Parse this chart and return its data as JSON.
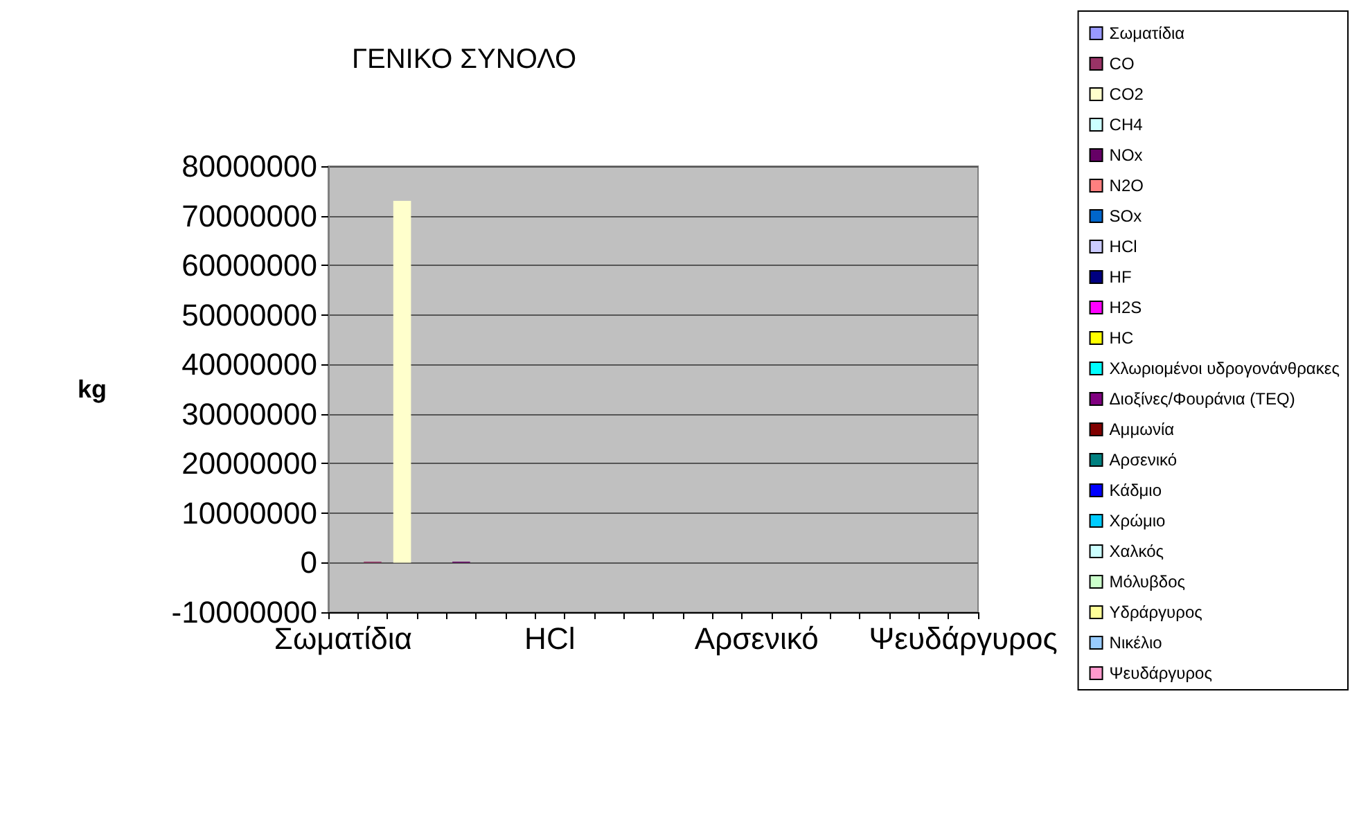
{
  "chart_data": {
    "type": "bar",
    "title": "ΓΕΝΙΚΟ ΣΥΝΟΛΟ",
    "ylabel": "kg",
    "categories": [
      "Σωματίδια",
      null,
      null,
      null,
      null,
      null,
      null,
      "HCl",
      null,
      null,
      null,
      null,
      null,
      null,
      "Αρσενικό",
      null,
      null,
      null,
      null,
      null,
      null,
      "Ψευδάργυρος"
    ],
    "stacked": true,
    "series": [
      {
        "name": "Σωματίδια",
        "color": "#9999ff",
        "values": [
          0,
          null,
          null,
          null,
          null,
          null,
          null,
          null,
          null,
          null,
          null,
          null,
          null,
          null,
          null,
          null,
          null,
          null,
          null,
          null,
          null,
          null
        ]
      },
      {
        "name": "CO",
        "color": "#993366",
        "values": [
          null,
          200000,
          null,
          null,
          null,
          null,
          null,
          null,
          null,
          null,
          null,
          null,
          null,
          null,
          null,
          null,
          null,
          null,
          null,
          null,
          null,
          null
        ]
      },
      {
        "name": "CO2",
        "color": "#ffffcc",
        "values": [
          null,
          null,
          73000000,
          null,
          null,
          null,
          null,
          null,
          null,
          null,
          null,
          null,
          null,
          null,
          null,
          null,
          null,
          null,
          null,
          null,
          null,
          null
        ]
      },
      {
        "name": "CH4",
        "color": "#ccffff",
        "values": [
          null,
          null,
          null,
          0,
          null,
          null,
          null,
          null,
          null,
          null,
          null,
          null,
          null,
          null,
          null,
          null,
          null,
          null,
          null,
          null,
          null,
          null
        ]
      },
      {
        "name": "NOx",
        "color": "#660066",
        "values": [
          null,
          null,
          null,
          null,
          200000,
          null,
          null,
          null,
          null,
          null,
          null,
          null,
          null,
          null,
          null,
          null,
          null,
          null,
          null,
          null,
          null,
          null
        ]
      },
      {
        "name": "N2O",
        "color": "#ff8080",
        "values": [
          null,
          null,
          null,
          null,
          null,
          0,
          null,
          null,
          null,
          null,
          null,
          null,
          null,
          null,
          null,
          null,
          null,
          null,
          null,
          null,
          null,
          null
        ]
      },
      {
        "name": "SOx",
        "color": "#0066cc",
        "values": [
          null,
          null,
          null,
          null,
          null,
          null,
          0,
          null,
          null,
          null,
          null,
          null,
          null,
          null,
          null,
          null,
          null,
          null,
          null,
          null,
          null,
          null
        ]
      },
      {
        "name": "HCl",
        "color": "#ccccff",
        "values": [
          null,
          null,
          null,
          null,
          null,
          null,
          null,
          0,
          null,
          null,
          null,
          null,
          null,
          null,
          null,
          null,
          null,
          null,
          null,
          null,
          null,
          null
        ]
      },
      {
        "name": "HF",
        "color": "#000080",
        "values": [
          null,
          null,
          null,
          null,
          null,
          null,
          null,
          null,
          0,
          null,
          null,
          null,
          null,
          null,
          null,
          null,
          null,
          null,
          null,
          null,
          null,
          null
        ]
      },
      {
        "name": "H2S",
        "color": "#ff00ff",
        "values": [
          null,
          null,
          null,
          null,
          null,
          null,
          null,
          null,
          null,
          0,
          null,
          null,
          null,
          null,
          null,
          null,
          null,
          null,
          null,
          null,
          null,
          null
        ]
      },
      {
        "name": "HC",
        "color": "#ffff00",
        "values": [
          null,
          null,
          null,
          null,
          null,
          null,
          null,
          null,
          null,
          null,
          0,
          null,
          null,
          null,
          null,
          null,
          null,
          null,
          null,
          null,
          null,
          null
        ]
      },
      {
        "name": "Χλωριομένοι υδρογονάνθρακες",
        "color": "#00ffff",
        "values": [
          null,
          null,
          null,
          null,
          null,
          null,
          null,
          null,
          null,
          null,
          null,
          0,
          null,
          null,
          null,
          null,
          null,
          null,
          null,
          null,
          null,
          null
        ]
      },
      {
        "name": "Διοξίνες/Φουράνια (TEQ)",
        "color": "#800080",
        "values": [
          null,
          null,
          null,
          null,
          null,
          null,
          null,
          null,
          null,
          null,
          null,
          null,
          0,
          null,
          null,
          null,
          null,
          null,
          null,
          null,
          null,
          null
        ]
      },
      {
        "name": "Αμμωνία",
        "color": "#800000",
        "values": [
          null,
          null,
          null,
          null,
          null,
          null,
          null,
          null,
          null,
          null,
          null,
          null,
          null,
          0,
          null,
          null,
          null,
          null,
          null,
          null,
          null,
          null
        ]
      },
      {
        "name": "Αρσενικό",
        "color": "#008080",
        "values": [
          null,
          null,
          null,
          null,
          null,
          null,
          null,
          null,
          null,
          null,
          null,
          null,
          null,
          null,
          0,
          null,
          null,
          null,
          null,
          null,
          null,
          null
        ]
      },
      {
        "name": "Κάδμιο",
        "color": "#0000ff",
        "values": [
          null,
          null,
          null,
          null,
          null,
          null,
          null,
          null,
          null,
          null,
          null,
          null,
          null,
          null,
          null,
          0,
          null,
          null,
          null,
          null,
          null,
          null
        ]
      },
      {
        "name": "Χρώμιο",
        "color": "#00ccff",
        "values": [
          null,
          null,
          null,
          null,
          null,
          null,
          null,
          null,
          null,
          null,
          null,
          null,
          null,
          null,
          null,
          null,
          0,
          null,
          null,
          null,
          null,
          null
        ]
      },
      {
        "name": "Χαλκός",
        "color": "#ccffff",
        "values": [
          null,
          null,
          null,
          null,
          null,
          null,
          null,
          null,
          null,
          null,
          null,
          null,
          null,
          null,
          null,
          null,
          null,
          0,
          null,
          null,
          null,
          null
        ]
      },
      {
        "name": "Μόλυβδος",
        "color": "#ccffcc",
        "values": [
          null,
          null,
          null,
          null,
          null,
          null,
          null,
          null,
          null,
          null,
          null,
          null,
          null,
          null,
          null,
          null,
          null,
          null,
          0,
          null,
          null,
          null
        ]
      },
      {
        "name": "Υδράργυρος",
        "color": "#ffff99",
        "values": [
          null,
          null,
          null,
          null,
          null,
          null,
          null,
          null,
          null,
          null,
          null,
          null,
          null,
          null,
          null,
          null,
          null,
          null,
          null,
          0,
          null,
          null
        ]
      },
      {
        "name": "Νικέλιο",
        "color": "#99ccff",
        "values": [
          null,
          null,
          null,
          null,
          null,
          null,
          null,
          null,
          null,
          null,
          null,
          null,
          null,
          null,
          null,
          null,
          null,
          null,
          null,
          null,
          0,
          null
        ]
      },
      {
        "name": "Ψευδάργυρος",
        "color": "#ff99cc",
        "values": [
          null,
          null,
          null,
          null,
          null,
          null,
          null,
          null,
          null,
          null,
          null,
          null,
          null,
          null,
          null,
          null,
          null,
          null,
          null,
          null,
          null,
          0
        ]
      }
    ],
    "ylim": [
      -10000000,
      80000000
    ],
    "yticks": [
      -10000000,
      0,
      10000000,
      20000000,
      30000000,
      40000000,
      50000000,
      60000000,
      70000000,
      80000000
    ],
    "grid": "y",
    "legend": "right"
  }
}
